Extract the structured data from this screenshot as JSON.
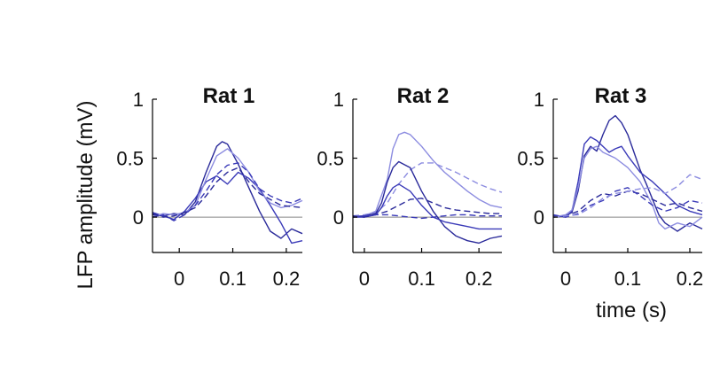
{
  "chart_data": {
    "type": "line",
    "ylabel": "LFP amplitude (mV)",
    "xlabel": "time (s)",
    "colors": {
      "dark": "#2a2a9a",
      "mid": "#3a3ab8",
      "light": "#8c8ce0",
      "zero_line": "#888888",
      "axis": "#000000"
    },
    "panels": [
      {
        "title": "Rat 1",
        "xlim": [
          -0.05,
          0.23
        ],
        "ylim": [
          -0.3,
          1.0
        ],
        "x_ticks": [
          "0",
          "0.1",
          "0.2"
        ],
        "y_ticks": [
          "0",
          "0.5",
          "1"
        ],
        "series": [
          {
            "style": "solid",
            "tone": "dark",
            "x": [
              -0.05,
              -0.03,
              -0.01,
              0.01,
              0.03,
              0.05,
              0.07,
              0.08,
              0.09,
              0.11,
              0.13,
              0.15,
              0.17,
              0.19,
              0.21,
              0.23
            ],
            "y": [
              0.02,
              0.01,
              0.03,
              0.02,
              0.13,
              0.38,
              0.6,
              0.64,
              0.62,
              0.45,
              0.25,
              0.05,
              -0.12,
              -0.18,
              -0.1,
              -0.14
            ]
          },
          {
            "style": "solid",
            "tone": "mid",
            "x": [
              -0.05,
              -0.03,
              -0.01,
              0.01,
              0.03,
              0.05,
              0.07,
              0.09,
              0.11,
              0.13,
              0.15,
              0.17,
              0.19,
              0.21,
              0.23
            ],
            "y": [
              0.04,
              0.01,
              -0.02,
              0.05,
              0.16,
              0.3,
              0.35,
              0.28,
              0.38,
              0.33,
              0.24,
              0.1,
              -0.05,
              -0.22,
              -0.2
            ]
          },
          {
            "style": "solid",
            "tone": "light",
            "x": [
              -0.05,
              -0.03,
              -0.01,
              0.01,
              0.03,
              0.05,
              0.07,
              0.09,
              0.11,
              0.13,
              0.15,
              0.17,
              0.19,
              0.21,
              0.23
            ],
            "y": [
              0.0,
              0.03,
              0.02,
              0.04,
              0.1,
              0.32,
              0.52,
              0.58,
              0.5,
              0.38,
              0.22,
              0.12,
              0.08,
              0.1,
              0.14
            ]
          },
          {
            "style": "dashed",
            "tone": "mid",
            "x": [
              -0.05,
              -0.03,
              -0.01,
              0.01,
              0.03,
              0.05,
              0.07,
              0.09,
              0.11,
              0.13,
              0.15,
              0.17,
              0.19,
              0.21,
              0.23
            ],
            "y": [
              0.0,
              0.02,
              -0.03,
              0.02,
              0.1,
              0.22,
              0.36,
              0.44,
              0.46,
              0.38,
              0.24,
              0.18,
              0.14,
              0.12,
              0.16
            ]
          },
          {
            "style": "dashed",
            "tone": "dark",
            "x": [
              -0.05,
              -0.03,
              -0.01,
              0.01,
              0.03,
              0.05,
              0.07,
              0.09,
              0.11,
              0.13,
              0.15,
              0.17,
              0.19,
              0.21,
              0.23
            ],
            "y": [
              0.03,
              0.0,
              0.01,
              0.04,
              0.08,
              0.18,
              0.3,
              0.38,
              0.42,
              0.3,
              0.2,
              0.15,
              0.1,
              0.09,
              0.08
            ]
          }
        ]
      },
      {
        "title": "Rat 2",
        "xlim": [
          -0.02,
          0.24
        ],
        "ylim": [
          -0.3,
          1.0
        ],
        "x_ticks": [
          "0",
          "0.1",
          "0.2"
        ],
        "y_ticks": [
          "0",
          "0.5",
          "1"
        ],
        "series": [
          {
            "style": "solid",
            "tone": "light",
            "x": [
              -0.02,
              0.0,
              0.02,
              0.04,
              0.05,
              0.06,
              0.07,
              0.08,
              0.1,
              0.12,
              0.14,
              0.16,
              0.18,
              0.2,
              0.22,
              0.24
            ],
            "y": [
              0.01,
              0.01,
              0.05,
              0.32,
              0.58,
              0.7,
              0.72,
              0.7,
              0.6,
              0.48,
              0.38,
              0.3,
              0.22,
              0.15,
              0.1,
              0.08
            ]
          },
          {
            "style": "dashed",
            "tone": "light",
            "x": [
              -0.02,
              0.0,
              0.02,
              0.04,
              0.06,
              0.08,
              0.1,
              0.12,
              0.14,
              0.16,
              0.18,
              0.2,
              0.22,
              0.24
            ],
            "y": [
              0.01,
              0.02,
              0.04,
              0.12,
              0.28,
              0.4,
              0.46,
              0.46,
              0.42,
              0.38,
              0.33,
              0.28,
              0.24,
              0.21
            ]
          },
          {
            "style": "solid",
            "tone": "dark",
            "x": [
              -0.02,
              0.0,
              0.02,
              0.03,
              0.04,
              0.05,
              0.06,
              0.08,
              0.1,
              0.12,
              0.14,
              0.16,
              0.18,
              0.2,
              0.22,
              0.24
            ],
            "y": [
              0.0,
              0.01,
              0.03,
              0.12,
              0.3,
              0.42,
              0.47,
              0.42,
              0.22,
              0.05,
              -0.08,
              -0.16,
              -0.2,
              -0.22,
              -0.18,
              -0.16
            ]
          },
          {
            "style": "solid",
            "tone": "mid",
            "x": [
              -0.02,
              0.0,
              0.02,
              0.03,
              0.04,
              0.05,
              0.06,
              0.08,
              0.1,
              0.12,
              0.14,
              0.16,
              0.18,
              0.2,
              0.22,
              0.24
            ],
            "y": [
              0.0,
              0.0,
              0.02,
              0.08,
              0.18,
              0.25,
              0.28,
              0.22,
              0.1,
              0.0,
              -0.04,
              -0.06,
              -0.08,
              -0.1,
              -0.1,
              -0.1
            ]
          },
          {
            "style": "dashed",
            "tone": "dark",
            "x": [
              -0.02,
              0.0,
              0.02,
              0.04,
              0.06,
              0.08,
              0.1,
              0.12,
              0.14,
              0.16,
              0.18,
              0.2,
              0.22,
              0.24
            ],
            "y": [
              0.01,
              0.0,
              0.02,
              0.05,
              0.1,
              0.15,
              0.16,
              0.12,
              0.08,
              0.06,
              0.05,
              0.04,
              0.03,
              0.03
            ]
          },
          {
            "style": "dashed",
            "tone": "mid",
            "x": [
              -0.02,
              0.0,
              0.02,
              0.04,
              0.06,
              0.08,
              0.1,
              0.12,
              0.14,
              0.16,
              0.18,
              0.2,
              0.22,
              0.24
            ],
            "y": [
              0.0,
              0.01,
              0.02,
              0.02,
              0.01,
              0.0,
              -0.01,
              0.0,
              0.01,
              0.02,
              0.02,
              0.01,
              0.01,
              0.01
            ]
          }
        ]
      },
      {
        "title": "Rat 3",
        "xlim": [
          -0.02,
          0.22
        ],
        "ylim": [
          -0.3,
          1.0
        ],
        "x_ticks": [
          "0",
          "0.1",
          "0.2"
        ],
        "y_ticks": [
          "0",
          "0.5",
          "1"
        ],
        "series": [
          {
            "style": "solid",
            "tone": "dark",
            "x": [
              -0.02,
              0.0,
              0.01,
              0.02,
              0.03,
              0.04,
              0.05,
              0.06,
              0.07,
              0.08,
              0.09,
              0.1,
              0.11,
              0.12,
              0.13,
              0.14,
              0.15,
              0.16,
              0.18,
              0.2,
              0.22
            ],
            "y": [
              0.0,
              0.01,
              0.04,
              0.22,
              0.52,
              0.6,
              0.56,
              0.7,
              0.82,
              0.86,
              0.8,
              0.7,
              0.55,
              0.4,
              0.28,
              0.15,
              0.02,
              -0.05,
              -0.12,
              -0.05,
              -0.1
            ]
          },
          {
            "style": "solid",
            "tone": "mid",
            "x": [
              -0.02,
              0.0,
              0.01,
              0.02,
              0.03,
              0.04,
              0.05,
              0.06,
              0.07,
              0.08,
              0.09,
              0.1,
              0.11,
              0.12,
              0.14,
              0.16,
              0.18,
              0.2,
              0.22
            ],
            "y": [
              0.02,
              0.0,
              0.05,
              0.3,
              0.62,
              0.68,
              0.65,
              0.6,
              0.55,
              0.58,
              0.6,
              0.52,
              0.45,
              0.38,
              0.3,
              0.2,
              0.1,
              0.05,
              0.02
            ]
          },
          {
            "style": "solid",
            "tone": "light",
            "x": [
              -0.02,
              0.0,
              0.01,
              0.02,
              0.03,
              0.04,
              0.05,
              0.06,
              0.08,
              0.1,
              0.12,
              0.14,
              0.15,
              0.16,
              0.18,
              0.2,
              0.22
            ],
            "y": [
              0.0,
              0.02,
              0.06,
              0.25,
              0.5,
              0.58,
              0.6,
              0.55,
              0.5,
              0.42,
              0.3,
              0.1,
              -0.05,
              -0.1,
              -0.05,
              -0.08,
              0.0
            ]
          },
          {
            "style": "dashed",
            "tone": "dark",
            "x": [
              -0.02,
              0.0,
              0.02,
              0.04,
              0.06,
              0.08,
              0.1,
              0.12,
              0.14,
              0.16,
              0.18,
              0.2,
              0.22
            ],
            "y": [
              0.0,
              0.01,
              0.05,
              0.14,
              0.2,
              0.18,
              0.22,
              0.2,
              0.15,
              0.1,
              0.12,
              0.08,
              0.05
            ]
          },
          {
            "style": "dashed",
            "tone": "mid",
            "x": [
              -0.02,
              0.0,
              0.02,
              0.04,
              0.06,
              0.08,
              0.1,
              0.12,
              0.14,
              0.16,
              0.18,
              0.2,
              0.22
            ],
            "y": [
              0.01,
              0.0,
              0.03,
              0.1,
              0.14,
              0.22,
              0.25,
              0.18,
              0.1,
              0.05,
              0.08,
              0.14,
              0.12
            ]
          },
          {
            "style": "dashed",
            "tone": "light",
            "x": [
              -0.02,
              0.0,
              0.02,
              0.04,
              0.06,
              0.08,
              0.1,
              0.12,
              0.14,
              0.16,
              0.18,
              0.2,
              0.22
            ],
            "y": [
              0.0,
              0.01,
              0.02,
              0.08,
              0.16,
              0.2,
              0.22,
              0.24,
              0.25,
              0.2,
              0.26,
              0.36,
              0.32
            ]
          }
        ]
      }
    ]
  }
}
